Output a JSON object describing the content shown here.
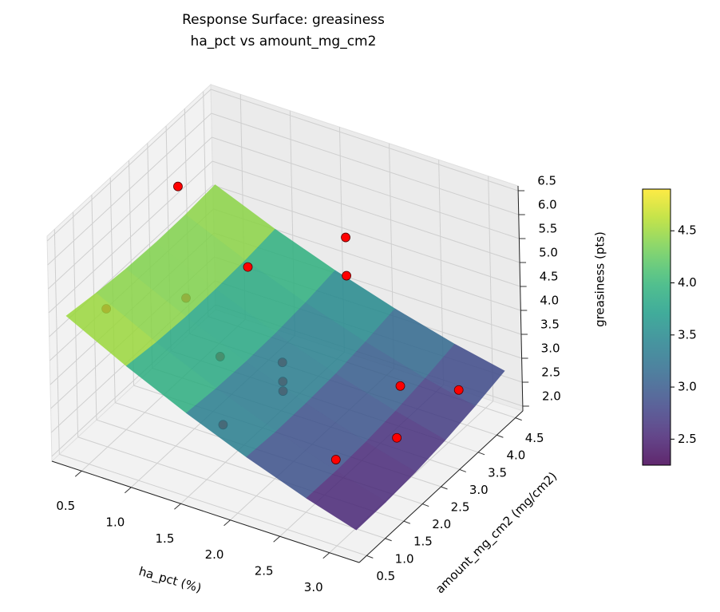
{
  "chart_data": {
    "type": "surface3d",
    "title": "Response Surface: greasiness",
    "subtitle": "ha_pct vs amount_mg_cm2",
    "x_label": "ha_pct (%)",
    "y_label": "amount_mg_cm2 (mg/cm2)",
    "z_label": "greasiness (pts)",
    "xlim": [
      0.2,
      3.3
    ],
    "ylim": [
      0.3,
      4.7
    ],
    "zlim": [
      1.9,
      6.6
    ],
    "xticks": [
      0.5,
      {
        "value": 1,
        "label": "1.0"
      },
      1.5,
      {
        "value": 2,
        "label": "2.0"
      },
      2.5,
      {
        "value": 3,
        "label": "3.0"
      }
    ],
    "yticks": [
      0.5,
      {
        "value": 1,
        "label": "1.0"
      },
      1.5,
      {
        "value": 2,
        "label": "2.0"
      },
      2.5,
      {
        "value": 3,
        "label": "3.0"
      },
      3.5,
      {
        "value": 4,
        "label": "4.0"
      },
      4.5
    ],
    "zticks": [
      {
        "value": 2,
        "label": "2.0"
      },
      2.5,
      {
        "value": 3,
        "label": "3.0"
      },
      3.5,
      {
        "value": 4,
        "label": "4.0"
      },
      4.5,
      {
        "value": 5,
        "label": "5.0"
      },
      5.5,
      {
        "value": 6,
        "label": "6.0"
      },
      6.5
    ],
    "grid": true,
    "surface": {
      "x": [
        0.3,
        0.9,
        1.5,
        2.1,
        2.7,
        3.2
      ],
      "y": [
        0.5,
        1.3,
        2.1,
        2.9,
        3.7,
        4.5
      ],
      "z": [
        [
          4.86,
          4.76,
          4.69,
          4.66,
          4.67,
          4.72
        ],
        [
          4.22,
          4.14,
          4.1,
          4.1,
          4.13,
          4.2
        ],
        [
          3.65,
          3.59,
          3.57,
          3.59,
          3.65,
          3.75
        ],
        [
          3.14,
          3.1,
          3.11,
          3.15,
          3.24,
          3.36
        ],
        [
          2.69,
          2.68,
          2.71,
          2.78,
          2.89,
          3.03
        ],
        [
          2.37,
          2.38,
          2.43,
          2.52,
          2.65,
          2.81
        ]
      ],
      "colormap": "viridis",
      "opacity": 0.85
    },
    "clim": [
      2.25,
      4.9
    ],
    "colorbar_ticks": [
      2.5,
      {
        "value": 3,
        "label": "3.0"
      },
      3.5,
      {
        "value": 4,
        "label": "4.0"
      },
      4.5
    ],
    "points": {
      "x": [
        0.5,
        2.0,
        2.0,
        1.0,
        0.4,
        0.75,
        1.2,
        1.6,
        1.6,
        1.6,
        1.6,
        2.6,
        3.0,
        2.9,
        2.7
      ],
      "y": [
        3.0,
        3.5,
        3.5,
        3.5,
        1.3,
        2.5,
        2.2,
        2.8,
        2.8,
        2.8,
        1.2,
        3.3,
        3.8,
        2.4,
        1.3
      ],
      "z": [
        5.9,
        5.5,
        4.7,
        4.2,
        4.5,
        4.1,
        3.4,
        3.12,
        2.72,
        2.52,
        2.97,
        2.95,
        2.78,
        2.72,
        2.92
      ],
      "color": "#ff0000"
    }
  }
}
